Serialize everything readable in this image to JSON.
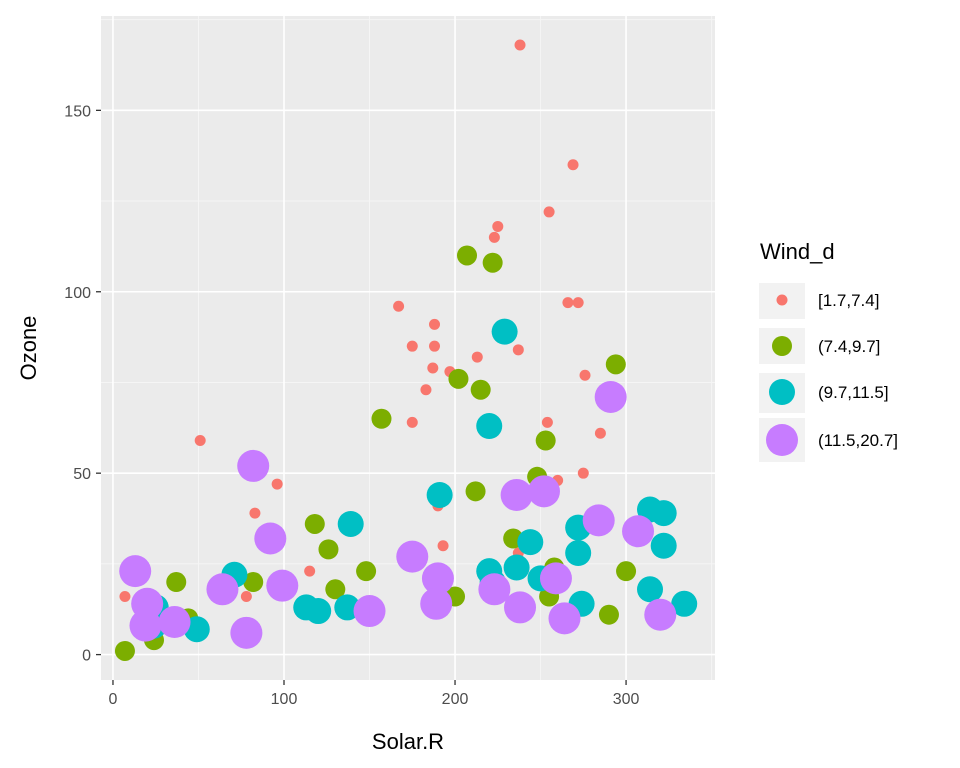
{
  "chart_data": {
    "type": "scatter",
    "xlabel": "Solar.R",
    "ylabel": "Ozone",
    "xlim": [
      -7,
      352
    ],
    "ylim": [
      -7,
      176
    ],
    "x_ticks": [
      0,
      100,
      200,
      300
    ],
    "y_ticks": [
      0,
      50,
      100,
      150
    ],
    "grid": true,
    "legend": {
      "title": "Wind_d",
      "position": "right"
    },
    "series": [
      {
        "name": "[1.7,7.4]",
        "color": "#F8766D",
        "size": 1,
        "points": [
          [
            238,
            168
          ],
          [
            269,
            135
          ],
          [
            255,
            122
          ],
          [
            225,
            118
          ],
          [
            223,
            115
          ],
          [
            266,
            97
          ],
          [
            272,
            97
          ],
          [
            167,
            96
          ],
          [
            188,
            91
          ],
          [
            175,
            85
          ],
          [
            188,
            85
          ],
          [
            237,
            84
          ],
          [
            213,
            82
          ],
          [
            187,
            79
          ],
          [
            197,
            78
          ],
          [
            276,
            77
          ],
          [
            183,
            73
          ],
          [
            254,
            64
          ],
          [
            175,
            64
          ],
          [
            51,
            59
          ],
          [
            285,
            61
          ],
          [
            96,
            47
          ],
          [
            275,
            50
          ],
          [
            260,
            48
          ],
          [
            238,
            46
          ],
          [
            190,
            41
          ],
          [
            83,
            39
          ],
          [
            193,
            30
          ],
          [
            237,
            28
          ],
          [
            115,
            23
          ],
          [
            78,
            16
          ],
          [
            7,
            16
          ]
        ]
      },
      {
        "name": "(7.4,9.7]",
        "color": "#7CAE00",
        "size": 2,
        "points": [
          [
            207,
            110
          ],
          [
            222,
            108
          ],
          [
            294,
            80
          ],
          [
            202,
            76
          ],
          [
            215,
            73
          ],
          [
            157,
            65
          ],
          [
            253,
            59
          ],
          [
            248,
            49
          ],
          [
            212,
            45
          ],
          [
            234,
            32
          ],
          [
            118,
            36
          ],
          [
            126,
            29
          ],
          [
            13,
            23
          ],
          [
            37,
            20
          ],
          [
            82,
            20
          ],
          [
            130,
            18
          ],
          [
            148,
            23
          ],
          [
            200,
            16
          ],
          [
            300,
            23
          ],
          [
            290,
            11
          ],
          [
            44,
            10
          ],
          [
            24,
            4
          ],
          [
            7,
            1
          ],
          [
            258,
            24
          ],
          [
            255,
            16
          ]
        ]
      },
      {
        "name": "(9.7,11.5]",
        "color": "#00BFC4",
        "size": 3,
        "points": [
          [
            229,
            89
          ],
          [
            220,
            63
          ],
          [
            191,
            44
          ],
          [
            139,
            36
          ],
          [
            244,
            31
          ],
          [
            272,
            35
          ],
          [
            314,
            40
          ],
          [
            322,
            39
          ],
          [
            322,
            30
          ],
          [
            220,
            23
          ],
          [
            236,
            24
          ],
          [
            272,
            28
          ],
          [
            71,
            22
          ],
          [
            25,
            13
          ],
          [
            24,
            8
          ],
          [
            49,
            7
          ],
          [
            113,
            13
          ],
          [
            120,
            12
          ],
          [
            137,
            13
          ],
          [
            222,
            20
          ],
          [
            250,
            21
          ],
          [
            274,
            14
          ],
          [
            314,
            18
          ],
          [
            334,
            14
          ]
        ]
      },
      {
        "name": "(11.5,20.7]",
        "color": "#C77CFF",
        "size": 4,
        "points": [
          [
            291,
            71
          ],
          [
            82,
            52
          ],
          [
            92,
            32
          ],
          [
            99,
            19
          ],
          [
            64,
            18
          ],
          [
            78,
            6
          ],
          [
            19,
            8
          ],
          [
            20,
            14
          ],
          [
            13,
            23
          ],
          [
            36,
            9
          ],
          [
            150,
            12
          ],
          [
            175,
            27
          ],
          [
            190,
            21
          ],
          [
            189,
            14
          ],
          [
            223,
            18
          ],
          [
            236,
            44
          ],
          [
            252,
            45
          ],
          [
            238,
            13
          ],
          [
            259,
            21
          ],
          [
            264,
            10
          ],
          [
            284,
            37
          ],
          [
            307,
            34
          ],
          [
            320,
            11
          ]
        ]
      }
    ]
  },
  "legend_items": [
    {
      "label": "[1.7,7.4]"
    },
    {
      "label": "(7.4,9.7]"
    },
    {
      "label": "(9.7,11.5]"
    },
    {
      "label": "(11.5,20.7]"
    }
  ]
}
